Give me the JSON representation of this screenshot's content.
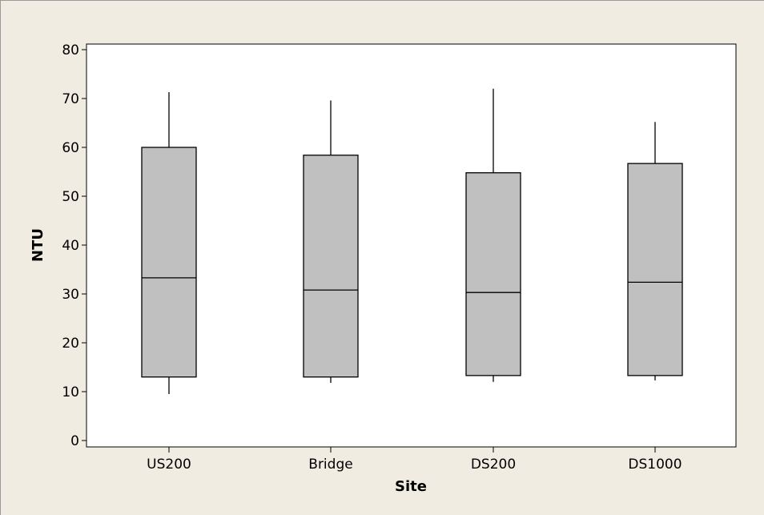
{
  "chart_data": {
    "type": "boxplot",
    "xlabel": "Site",
    "ylabel": "NTU",
    "ylim": [
      0,
      80
    ],
    "yticks": [
      0,
      10,
      20,
      30,
      40,
      50,
      60,
      70,
      80
    ],
    "categories": [
      "US200",
      "Bridge",
      "DS200",
      "DS1000"
    ],
    "boxes": [
      {
        "category": "US200",
        "whisker_low": 9.5,
        "q1": 13.0,
        "median": 33.3,
        "q3": 60.0,
        "whisker_high": 71.3
      },
      {
        "category": "Bridge",
        "whisker_low": 11.8,
        "q1": 13.0,
        "median": 30.8,
        "q3": 58.4,
        "whisker_high": 69.6
      },
      {
        "category": "DS200",
        "whisker_low": 12.0,
        "q1": 13.3,
        "median": 30.3,
        "q3": 54.8,
        "whisker_high": 72.0
      },
      {
        "category": "DS1000",
        "whisker_low": 12.3,
        "q1": 13.3,
        "median": 32.4,
        "q3": 56.7,
        "whisker_high": 65.2
      }
    ],
    "grid": false,
    "legend": "none",
    "colors": {
      "background": "#f0ece2",
      "plot_area": "#ffffff",
      "box_fill": "#c0c0c0",
      "stroke": "#000000"
    }
  }
}
